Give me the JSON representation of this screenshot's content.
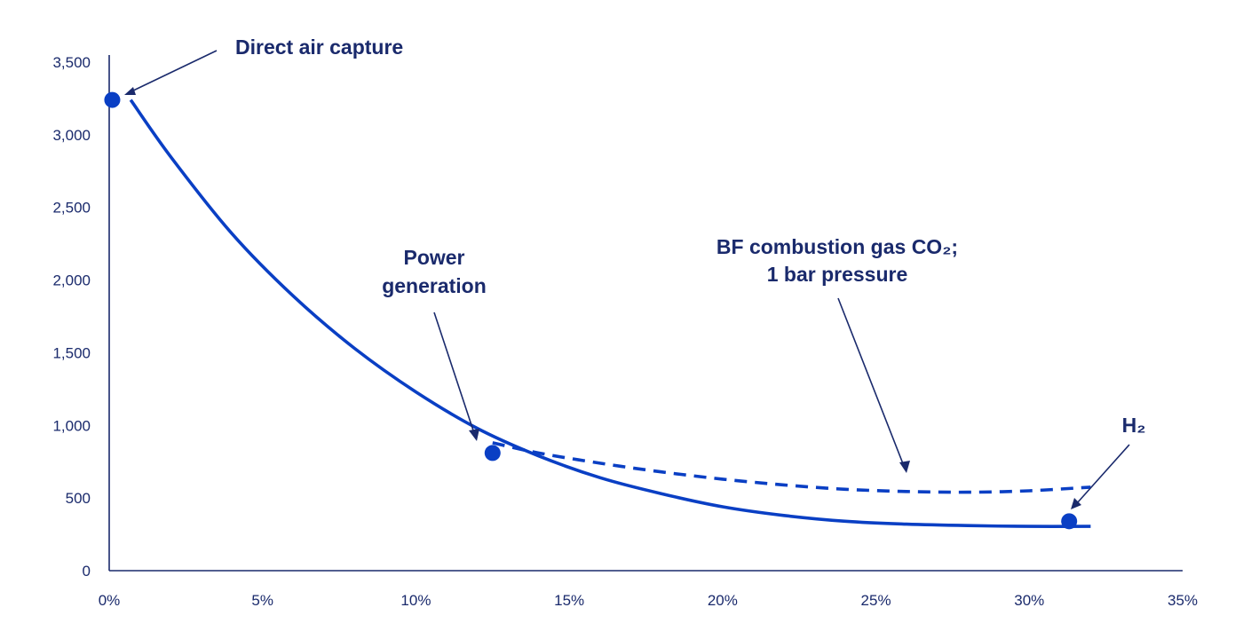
{
  "chart_data": {
    "type": "line",
    "title": "",
    "xlabel": "",
    "ylabel": "",
    "xlim": [
      0,
      35
    ],
    "ylim": [
      0,
      3500
    ],
    "x_ticks": [
      0,
      5,
      10,
      15,
      20,
      25,
      30,
      35
    ],
    "x_tick_labels": [
      "0%",
      "5%",
      "10%",
      "15%",
      "20%",
      "25%",
      "30%",
      "35%"
    ],
    "y_ticks": [
      0,
      500,
      1000,
      1500,
      2000,
      2500,
      3000,
      3500
    ],
    "y_tick_labels": [
      "0",
      "500",
      "1,000",
      "1,500",
      "2,000",
      "2,500",
      "3,000",
      "3,500"
    ],
    "grid": false,
    "color": "#0a3fc4",
    "series": [
      {
        "style": "solid",
        "x": [
          0.7,
          2,
          4,
          6,
          8,
          10,
          12,
          14,
          16,
          18,
          20,
          22,
          24,
          26,
          28,
          30,
          32
        ],
        "y": [
          3240,
          2850,
          2320,
          1890,
          1530,
          1230,
          980,
          790,
          640,
          530,
          440,
          380,
          340,
          320,
          310,
          305,
          305
        ]
      },
      {
        "style": "dashed",
        "x": [
          12.5,
          14,
          16,
          18,
          20,
          22,
          24,
          26,
          28,
          30,
          32
        ],
        "y": [
          880,
          810,
          740,
          680,
          630,
          590,
          560,
          545,
          540,
          550,
          575
        ]
      }
    ],
    "points": [
      {
        "label": "Direct air capture",
        "x": 0.1,
        "y": 3240
      },
      {
        "label": "Power generation",
        "x": 12.5,
        "y": 810
      },
      {
        "label": "H₂",
        "x": 31.3,
        "y": 340
      }
    ],
    "annotations": [
      {
        "lines": [
          "Direct air capture"
        ]
      },
      {
        "lines": [
          "Power",
          "generation"
        ]
      },
      {
        "lines": [
          "BF combustion gas CO₂;",
          "1 bar pressure"
        ]
      },
      {
        "lines": [
          "H₂"
        ]
      }
    ]
  }
}
